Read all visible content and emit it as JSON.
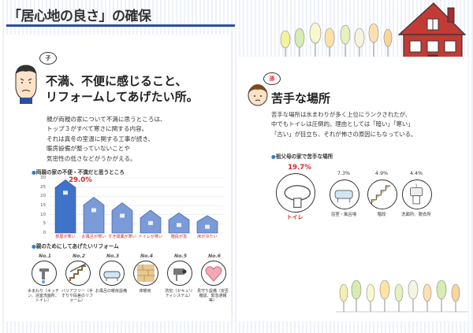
{
  "page_title": "「居心地の良さ」の確保",
  "left": {
    "badge": "子",
    "heading_line1": "不満、不便に感じること、",
    "heading_line2": "リフォームしてあげたい所。",
    "body_lines": [
      "親が両親の家について不満に思うところは、",
      "トップ３がすべて寒さに関する内容。",
      "それは真冬の室温に関する工事が続き、",
      "暖房設備が整っていないことや",
      "気密性の低さなどがうかがえる。"
    ],
    "chart_title": "両親の家の不便・不満だと思うところ",
    "chart_data": {
      "type": "bar",
      "categories": [
        "部屋が寒い",
        "お風呂が寒い",
        "すき間風が寒い",
        "トイレが寒い",
        "階段が急",
        "床が冷たい"
      ],
      "values": [
        29.0,
        19.5,
        16.5,
        12.5,
        11.0,
        9.5
      ],
      "highlight_label": "29.0%",
      "y_ticks": [
        "30",
        "25",
        "20",
        "15",
        "10",
        "5",
        "0"
      ],
      "ylim": [
        0,
        30
      ]
    },
    "reform_title": "親のためにしてあげたいリフォーム",
    "reform_items": [
      {
        "rank": "No.1",
        "label": "水まわり（キッチン、浴室洗面所、トイレ）",
        "icon": "faucet-icon"
      },
      {
        "rank": "No.2",
        "label": "バリアフリー（手すりや段差のリフォーム）",
        "icon": "stairs-rail-icon"
      },
      {
        "rank": "No.3",
        "label": "お風呂の暖房設備",
        "icon": "bathtub-icon"
      },
      {
        "rank": "No.4",
        "label": "床暖房",
        "icon": "floor-heating-icon"
      },
      {
        "rank": "No.5",
        "label": "防犯（セキュリティシステム）",
        "icon": "security-camera-icon"
      },
      {
        "rank": "No.6",
        "label": "見守り設備（安否確認、緊急通報等）",
        "icon": "heart-icon"
      }
    ]
  },
  "right": {
    "badge": "孫",
    "heading": "苦手な場所",
    "body_lines": [
      "苦手な場所は水まわりが多く上位にランクされたが、",
      "中でもトイレは圧倒的。理由としては「暗い」「寒い」",
      "「古い」が目立ち、それが怖さの原因にもなっている。"
    ],
    "chart_title": "祖父母の家で苦手な場所",
    "places": [
      {
        "pct": "19.7%",
        "value": 19.7,
        "label": "トイレ",
        "icon": "toilet-icon",
        "highlight": true
      },
      {
        "pct": "7.3%",
        "value": 7.3,
        "label": "浴室・風呂場",
        "icon": "bathtub-icon",
        "highlight": false
      },
      {
        "pct": "4.9%",
        "value": 4.9,
        "label": "階段",
        "icon": "stairs-icon",
        "highlight": false
      },
      {
        "pct": "4.4%",
        "value": 4.4,
        "label": "洗面所、脱衣所",
        "icon": "washroom-icon",
        "highlight": false
      }
    ]
  },
  "colors": {
    "accent_blue": "#2b4f9e",
    "bar_blue": "#5b86d0",
    "highlight_red": "#d42828",
    "house_red": "#c23b35"
  }
}
